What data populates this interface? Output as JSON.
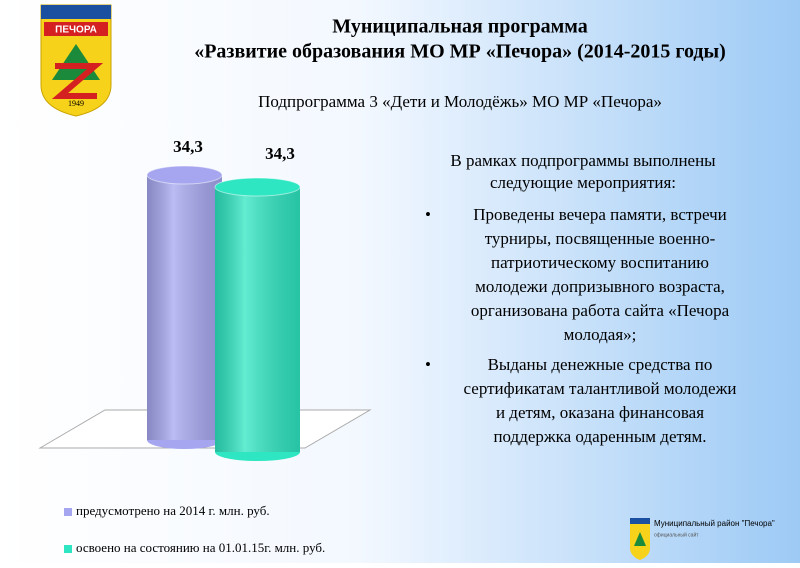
{
  "slide": {
    "title": [
      "Муниципальная программа",
      "«Развитие образования МО МР «Печора»  (2014-2015 годы)"
    ],
    "subtitle": "Подпрограмма 3 «Дети и Молодёжь» МО МР «Печора»",
    "intro": [
      "В рамках подпрограммы выполнены",
      "следующие мероприятия:"
    ],
    "bullet": "•",
    "bullets": [
      [
        "Проведены вечера памяти, встречи",
        "турниры, посвященные военно-",
        "патриотическому воспитанию",
        "молодежи допризывного возраста,",
        "организована работа сайта «Печора",
        "молодая»;"
      ],
      [
        "Выданы денежные средства по",
        "сертификатам талантливой молодежи",
        "и детям, оказана финансовая",
        "поддержка одаренным детям."
      ]
    ],
    "logo": {
      "name": "ПЕЧОРА",
      "year": "1949"
    },
    "footer": {
      "title": "Муниципальный район \"Печора\"",
      "caption": "официальный сайт"
    }
  },
  "chart_data": {
    "type": "bar",
    "series": [
      {
        "name": "предусмотрено на 2014 г. млн. руб.",
        "color": "#a6a6f0",
        "values": [
          34.3
        ],
        "value_labels": [
          "34,3"
        ]
      },
      {
        "name": "освоено на состоянию на 01.01.15г. млн. руб.",
        "color": "#2ee6c2",
        "values": [
          34.3
        ],
        "value_labels": [
          "34,3"
        ]
      }
    ]
  }
}
